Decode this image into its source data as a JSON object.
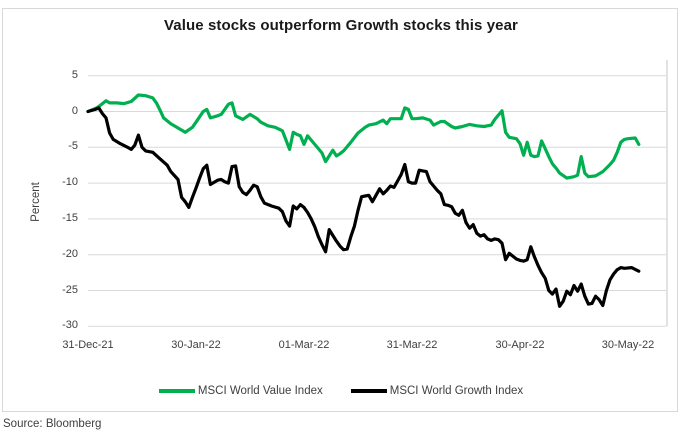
{
  "chart": {
    "title": "Value stocks outperform Growth stocks this year",
    "source": "Source: Bloomberg"
  },
  "chart_data": {
    "type": "line",
    "title": "Value stocks outperform Growth stocks this year",
    "xlabel": "",
    "ylabel": "Percent",
    "ylim": [
      -30,
      5
    ],
    "grid": "horizontal",
    "legend_position": "bottom",
    "x_unit": "days since 31-Dec-21",
    "yticks": [
      5,
      0,
      -5,
      -10,
      -15,
      -20,
      -25,
      -30
    ],
    "xticks": [
      {
        "label": "31-Dec-21",
        "day": 0
      },
      {
        "label": "30-Jan-22",
        "day": 30
      },
      {
        "label": "01-Mar-22",
        "day": 60
      },
      {
        "label": "31-Mar-22",
        "day": 90
      },
      {
        "label": "30-Apr-22",
        "day": 120
      },
      {
        "label": "30-May-22",
        "day": 150
      }
    ],
    "series": [
      {
        "name": "MSCI World Value Index",
        "color": "#00B050",
        "points": [
          [
            0,
            0
          ],
          [
            2,
            0.4
          ],
          [
            3,
            0.7
          ],
          [
            5,
            1.5
          ],
          [
            6,
            1.2
          ],
          [
            8,
            1.2
          ],
          [
            10,
            1.1
          ],
          [
            12,
            1.4
          ],
          [
            14,
            2.3
          ],
          [
            16,
            2.2
          ],
          [
            18,
            1.9
          ],
          [
            19,
            1.2
          ],
          [
            20,
            0.2
          ],
          [
            21,
            -0.9
          ],
          [
            23,
            -1.7
          ],
          [
            25,
            -2.3
          ],
          [
            27,
            -2.9
          ],
          [
            29,
            -2.2
          ],
          [
            30,
            -1.5
          ],
          [
            32,
            0
          ],
          [
            33,
            0.3
          ],
          [
            34,
            -0.9
          ],
          [
            36,
            -0.6
          ],
          [
            37,
            -0.4
          ],
          [
            39,
            1
          ],
          [
            40,
            1.2
          ],
          [
            41,
            -0.6
          ],
          [
            43,
            -1.1
          ],
          [
            45,
            -0.4
          ],
          [
            47,
            -1
          ],
          [
            48,
            -1.5
          ],
          [
            50,
            -2
          ],
          [
            52,
            -2.2
          ],
          [
            54,
            -2.7
          ],
          [
            55,
            -4
          ],
          [
            56,
            -5.3
          ],
          [
            57,
            -2.9
          ],
          [
            58,
            -3.2
          ],
          [
            59,
            -3.4
          ],
          [
            60,
            -4.6
          ],
          [
            61,
            -3.4
          ],
          [
            62,
            -4
          ],
          [
            63,
            -4.6
          ],
          [
            65,
            -5.8
          ],
          [
            66,
            -7
          ],
          [
            67,
            -6.2
          ],
          [
            68,
            -5.4
          ],
          [
            69,
            -6.2
          ],
          [
            70,
            -5.9
          ],
          [
            71,
            -5.5
          ],
          [
            72,
            -4.9
          ],
          [
            73,
            -4.3
          ],
          [
            75,
            -3
          ],
          [
            77,
            -2.2
          ],
          [
            78,
            -1.9
          ],
          [
            80,
            -1.7
          ],
          [
            82,
            -1.2
          ],
          [
            83,
            -1.7
          ],
          [
            84,
            -1
          ],
          [
            86,
            -1
          ],
          [
            87,
            -1
          ],
          [
            88,
            0.5
          ],
          [
            89,
            0.3
          ],
          [
            90,
            -1
          ],
          [
            91,
            -1
          ],
          [
            93,
            -0.9
          ],
          [
            95,
            -1.2
          ],
          [
            96,
            -1.9
          ],
          [
            98,
            -1.4
          ],
          [
            99,
            -1.4
          ],
          [
            101,
            -2.1
          ],
          [
            102,
            -2.3
          ],
          [
            104,
            -2.1
          ],
          [
            106,
            -1.8
          ],
          [
            108,
            -2
          ],
          [
            110,
            -2.1
          ],
          [
            112,
            -1.9
          ],
          [
            113,
            -1.1
          ],
          [
            115,
            0.1
          ],
          [
            116,
            -2.9
          ],
          [
            117,
            -3.6
          ],
          [
            119,
            -3.8
          ],
          [
            120,
            -4.5
          ],
          [
            121,
            -6.1
          ],
          [
            122,
            -4.3
          ],
          [
            123,
            -6.1
          ],
          [
            124,
            -6.3
          ],
          [
            125,
            -6.2
          ],
          [
            126,
            -4.1
          ],
          [
            127,
            -5.2
          ],
          [
            128,
            -6.3
          ],
          [
            129,
            -7.3
          ],
          [
            130,
            -7.9
          ],
          [
            131,
            -8.6
          ],
          [
            133,
            -9.3
          ],
          [
            135,
            -9.1
          ],
          [
            136,
            -8.9
          ],
          [
            137,
            -6.3
          ],
          [
            138,
            -8.6
          ],
          [
            139,
            -9.1
          ],
          [
            141,
            -9
          ],
          [
            143,
            -8.4
          ],
          [
            144,
            -7.9
          ],
          [
            145,
            -7.4
          ],
          [
            146,
            -6.8
          ],
          [
            147,
            -5.7
          ],
          [
            148,
            -4.3
          ],
          [
            149,
            -3.9
          ],
          [
            150,
            -3.8
          ],
          [
            152,
            -3.7
          ],
          [
            153,
            -4.6
          ]
        ]
      },
      {
        "name": "MSCI World Growth Index",
        "color": "#000000",
        "points": [
          [
            0,
            0
          ],
          [
            2,
            0.3
          ],
          [
            3,
            0.5
          ],
          [
            4,
            -0.3
          ],
          [
            5,
            -0.9
          ],
          [
            6,
            -3
          ],
          [
            7,
            -3.9
          ],
          [
            9,
            -4.5
          ],
          [
            11,
            -5
          ],
          [
            12,
            -5.3
          ],
          [
            13,
            -4.7
          ],
          [
            14,
            -3.3
          ],
          [
            15,
            -5
          ],
          [
            16,
            -5.5
          ],
          [
            18,
            -5.7
          ],
          [
            20,
            -6.6
          ],
          [
            22,
            -7.5
          ],
          [
            23,
            -8.4
          ],
          [
            25,
            -9.5
          ],
          [
            26,
            -12
          ],
          [
            27,
            -12.6
          ],
          [
            28,
            -13.4
          ],
          [
            29,
            -12
          ],
          [
            30,
            -10.7
          ],
          [
            31,
            -9.3
          ],
          [
            32,
            -8
          ],
          [
            33,
            -7.5
          ],
          [
            34,
            -10.2
          ],
          [
            35,
            -9.9
          ],
          [
            36,
            -9.6
          ],
          [
            37,
            -9.5
          ],
          [
            38,
            -9.8
          ],
          [
            39,
            -10
          ],
          [
            40,
            -7.7
          ],
          [
            41,
            -7.6
          ],
          [
            42,
            -10.5
          ],
          [
            43,
            -11.3
          ],
          [
            44,
            -11.6
          ],
          [
            45,
            -11
          ],
          [
            46,
            -10.3
          ],
          [
            47,
            -10.5
          ],
          [
            48,
            -11.9
          ],
          [
            49,
            -12.8
          ],
          [
            51,
            -13.2
          ],
          [
            53,
            -13.5
          ],
          [
            54,
            -14
          ],
          [
            55,
            -15.3
          ],
          [
            56,
            -16
          ],
          [
            57,
            -13.2
          ],
          [
            58,
            -13.6
          ],
          [
            59,
            -13
          ],
          [
            60,
            -13.4
          ],
          [
            61,
            -14.1
          ],
          [
            62,
            -15
          ],
          [
            63,
            -16.1
          ],
          [
            64,
            -17.5
          ],
          [
            65,
            -18.6
          ],
          [
            66,
            -19.6
          ],
          [
            67,
            -16.5
          ],
          [
            68,
            -17.3
          ],
          [
            69,
            -18.1
          ],
          [
            70,
            -18.8
          ],
          [
            71,
            -19.3
          ],
          [
            72,
            -19.2
          ],
          [
            73,
            -17.5
          ],
          [
            74,
            -16
          ],
          [
            75,
            -13.8
          ],
          [
            76,
            -11.9
          ],
          [
            77,
            -11.8
          ],
          [
            78,
            -11.7
          ],
          [
            79,
            -12.6
          ],
          [
            80,
            -11.7
          ],
          [
            81,
            -10.8
          ],
          [
            82,
            -11.5
          ],
          [
            83,
            -11
          ],
          [
            84,
            -10.4
          ],
          [
            85,
            -10.6
          ],
          [
            86,
            -9.7
          ],
          [
            87,
            -8.8
          ],
          [
            88,
            -7.4
          ],
          [
            89,
            -9.8
          ],
          [
            90,
            -10
          ],
          [
            91,
            -10
          ],
          [
            92,
            -8.2
          ],
          [
            93,
            -8.3
          ],
          [
            94,
            -8.4
          ],
          [
            95,
            -9.8
          ],
          [
            96,
            -10.4
          ],
          [
            97,
            -11
          ],
          [
            98,
            -11.5
          ],
          [
            99,
            -13
          ],
          [
            100,
            -13.1
          ],
          [
            101,
            -13.3
          ],
          [
            102,
            -14.2
          ],
          [
            103,
            -14.5
          ],
          [
            104,
            -13.8
          ],
          [
            105,
            -15.5
          ],
          [
            106,
            -16.3
          ],
          [
            107,
            -15.8
          ],
          [
            108,
            -17
          ],
          [
            109,
            -17.4
          ],
          [
            110,
            -17.2
          ],
          [
            111,
            -17.8
          ],
          [
            112,
            -18
          ],
          [
            113,
            -17.8
          ],
          [
            114,
            -17.9
          ],
          [
            115,
            -18.4
          ],
          [
            116,
            -20.7
          ],
          [
            117,
            -19.8
          ],
          [
            118,
            -20.2
          ],
          [
            119,
            -20.6
          ],
          [
            120,
            -20.8
          ],
          [
            121,
            -20.9
          ],
          [
            122,
            -20.7
          ],
          [
            123,
            -18.9
          ],
          [
            124,
            -20.3
          ],
          [
            125,
            -21.5
          ],
          [
            126,
            -22.5
          ],
          [
            127,
            -23.3
          ],
          [
            128,
            -25
          ],
          [
            129,
            -25.5
          ],
          [
            130,
            -24.8
          ],
          [
            131,
            -27.2
          ],
          [
            132,
            -26.5
          ],
          [
            133,
            -25.1
          ],
          [
            134,
            -25.6
          ],
          [
            135,
            -24.3
          ],
          [
            136,
            -25.1
          ],
          [
            137,
            -24.1
          ],
          [
            138,
            -25.8
          ],
          [
            139,
            -26.9
          ],
          [
            140,
            -26.8
          ],
          [
            141,
            -25.8
          ],
          [
            142,
            -26.3
          ],
          [
            143,
            -27.1
          ],
          [
            144,
            -25
          ],
          [
            145,
            -23.5
          ],
          [
            146,
            -22.7
          ],
          [
            147,
            -22.1
          ],
          [
            148,
            -21.8
          ],
          [
            149,
            -21.9
          ],
          [
            151,
            -21.8
          ],
          [
            153,
            -22.3
          ]
        ]
      }
    ]
  }
}
